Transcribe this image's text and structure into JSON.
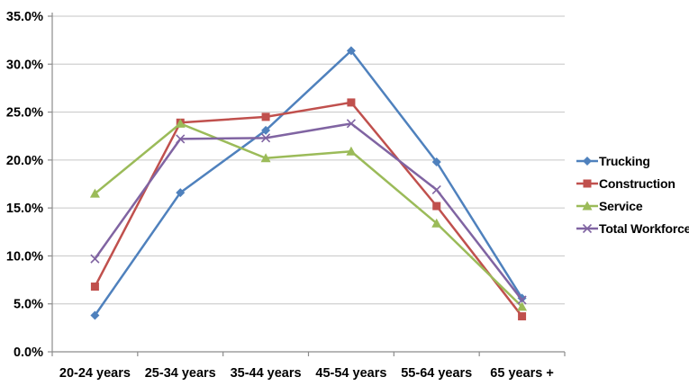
{
  "chart_data": {
    "type": "line",
    "title": "",
    "xlabel": "",
    "ylabel": "",
    "categories": [
      "20-24 years",
      "25-34 years",
      "35-44 years",
      "45-54 years",
      "55-64 years",
      "65 years +"
    ],
    "series": [
      {
        "name": "Trucking",
        "color": "#4F81BD",
        "marker": "diamond",
        "values": [
          3.8,
          16.6,
          23.1,
          31.4,
          19.8,
          5.6
        ]
      },
      {
        "name": "Construction",
        "color": "#C0504D",
        "marker": "square",
        "values": [
          6.8,
          23.9,
          24.5,
          26.0,
          15.2,
          3.7
        ]
      },
      {
        "name": "Service",
        "color": "#9BBB59",
        "marker": "triangle",
        "values": [
          16.5,
          23.8,
          20.2,
          20.9,
          13.4,
          4.7
        ]
      },
      {
        "name": "Total Workforce",
        "color": "#8064A2",
        "marker": "x",
        "values": [
          9.7,
          22.2,
          22.3,
          23.8,
          16.9,
          5.4
        ]
      }
    ],
    "ylim": [
      0,
      35
    ],
    "ytick_step": 5,
    "y_tick_labels": [
      "0.0%",
      "5.0%",
      "10.0%",
      "15.0%",
      "20.0%",
      "25.0%",
      "30.0%",
      "35.0%"
    ],
    "grid": true,
    "legend_position": "right",
    "colors": {
      "axis": "#8C8C8C",
      "gridline": "#C6C6C6",
      "text": "#000000",
      "background": "#FFFFFF"
    }
  }
}
